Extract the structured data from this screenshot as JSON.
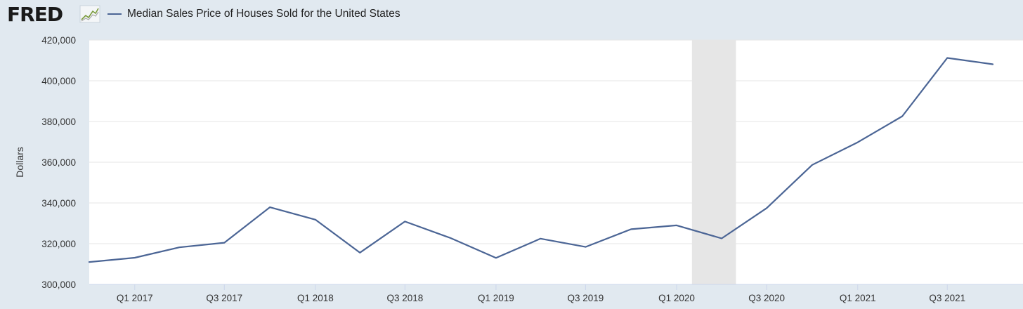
{
  "header": {
    "logo_text": "FRED",
    "logo_icon": "line-chart-icon",
    "legend_label": "Median Sales Price of Houses Sold for the United States"
  },
  "colors": {
    "background": "#e1e9f0",
    "plot_background": "#ffffff",
    "line": "#4b6595",
    "recession": "#e6e6e6",
    "grid": "#e6e6e6"
  },
  "chart_data": {
    "type": "line",
    "title": "",
    "xlabel": "",
    "ylabel": "Dollars",
    "ylim": [
      300000,
      420000
    ],
    "yticks": [
      300000,
      320000,
      340000,
      360000,
      380000,
      400000,
      420000
    ],
    "ytick_labels": [
      "300,000",
      "320,000",
      "340,000",
      "360,000",
      "380,000",
      "400,000",
      "420,000"
    ],
    "xticks": [
      "Q1 2017",
      "Q3 2017",
      "Q1 2018",
      "Q3 2018",
      "Q1 2019",
      "Q3 2019",
      "Q1 2020",
      "Q3 2020",
      "Q1 2021",
      "Q3 2021"
    ],
    "grid": true,
    "legend_position": "top-left",
    "recession_shading": {
      "from": "2020-02-01",
      "to": "2020-04-30"
    },
    "series": [
      {
        "name": "Median Sales Price of Houses Sold for the United States",
        "x": [
          "2016-10-01",
          "2017-01-01",
          "2017-04-01",
          "2017-07-01",
          "2017-10-01",
          "2018-01-01",
          "2018-04-01",
          "2018-07-01",
          "2018-10-01",
          "2019-01-01",
          "2019-04-01",
          "2019-07-01",
          "2019-10-01",
          "2020-01-01",
          "2020-04-01",
          "2020-07-01",
          "2020-10-01",
          "2021-01-01",
          "2021-04-01",
          "2021-07-01",
          "2021-10-01"
        ],
        "values": [
          311000,
          313100,
          318200,
          320500,
          337900,
          331800,
          315600,
          330900,
          322800,
          313000,
          322500,
          318400,
          327100,
          329000,
          322600,
          337500,
          358700,
          369800,
          382600,
          411200,
          408100
        ]
      }
    ]
  }
}
